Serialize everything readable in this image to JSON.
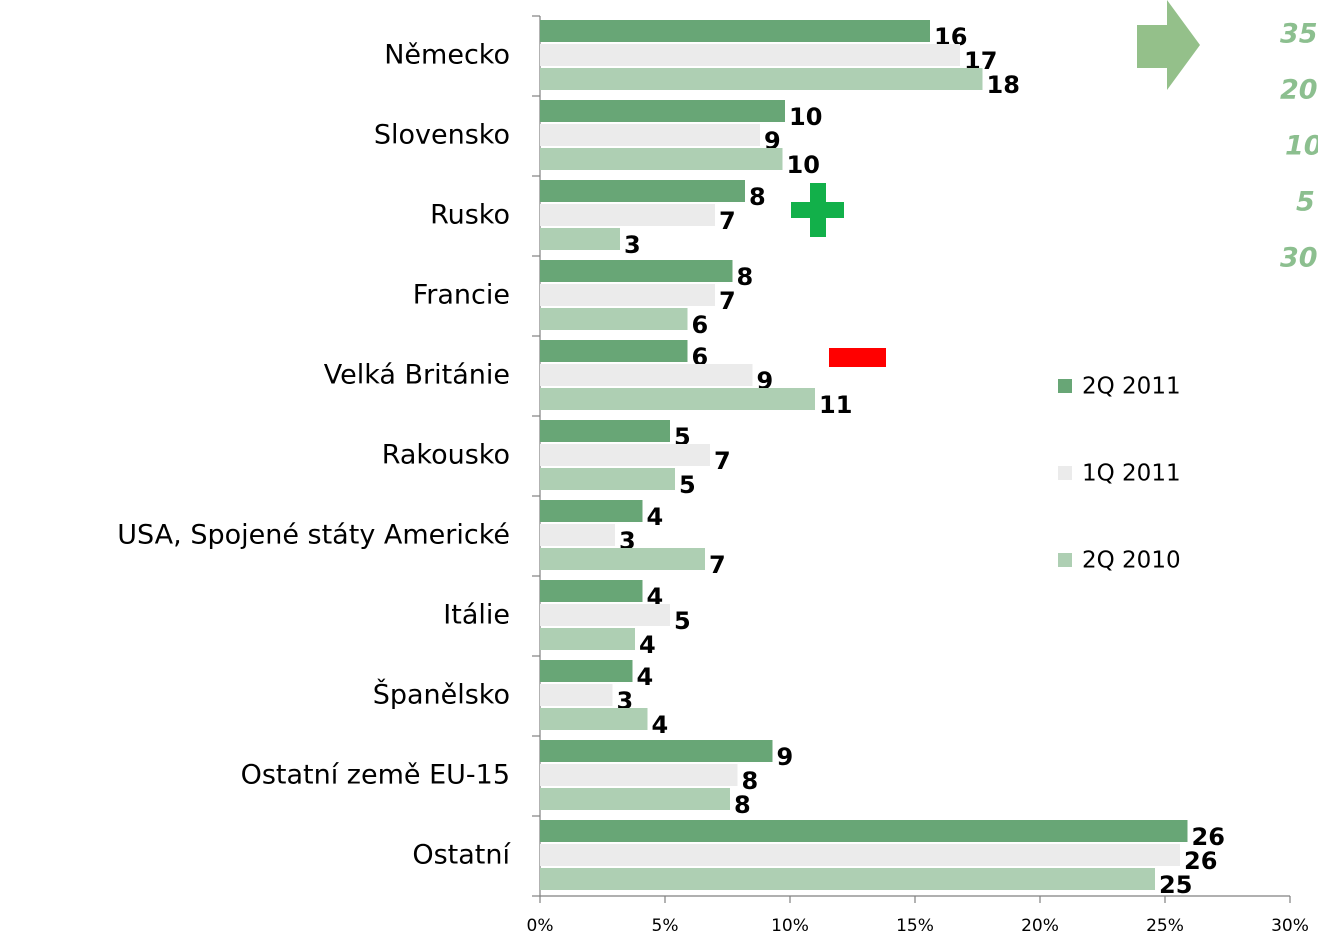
{
  "chart_data": {
    "type": "hbar",
    "categories": [
      "Německo",
      "Slovensko",
      "Rusko",
      "Francie",
      "Velká Británie",
      "Rakousko",
      "USA, Spojené státy Americké",
      "Itálie",
      "Španělsko",
      "Ostatní země EU-15",
      "Ostatní"
    ],
    "series": [
      {
        "name": "2Q 2011",
        "color": "#68a676",
        "values": [
          15.6,
          9.8,
          8.2,
          7.7,
          5.9,
          5.2,
          4.1,
          4.1,
          3.7,
          9.3,
          25.9
        ],
        "value_labels": [
          "16",
          "10",
          "8",
          "8",
          "6",
          "5",
          "4",
          "4",
          "4",
          "9",
          "26"
        ]
      },
      {
        "name": "1Q 2011",
        "color": "#ebebeb",
        "values": [
          16.8,
          8.8,
          7.0,
          7.0,
          8.5,
          6.8,
          3.0,
          5.2,
          2.9,
          7.9,
          25.6
        ],
        "value_labels": [
          "17",
          "9",
          "7",
          "7",
          "9",
          "7",
          "3",
          "5",
          "3",
          "8",
          "26"
        ]
      },
      {
        "name": "2Q 2010",
        "color": "#aecfb3",
        "values": [
          17.7,
          9.7,
          3.2,
          5.9,
          11.0,
          5.4,
          6.6,
          3.8,
          4.3,
          7.6,
          24.6
        ],
        "value_labels": [
          "18",
          "10",
          "3",
          "6",
          "11",
          "5",
          "7",
          "4",
          "4",
          "8",
          "25"
        ]
      }
    ],
    "xlim": [
      0,
      30
    ],
    "xticks": [
      {
        "value": 0,
        "label": "0%"
      },
      {
        "value": 5,
        "label": "5%"
      },
      {
        "value": 10,
        "label": "10%"
      },
      {
        "value": 15,
        "label": "15%"
      },
      {
        "value": 20,
        "label": "20%"
      },
      {
        "value": 25,
        "label": "25%"
      },
      {
        "value": 30,
        "label": "30%"
      }
    ],
    "side_notes": [
      "35",
      "20",
      "10",
      "5",
      "30"
    ]
  }
}
